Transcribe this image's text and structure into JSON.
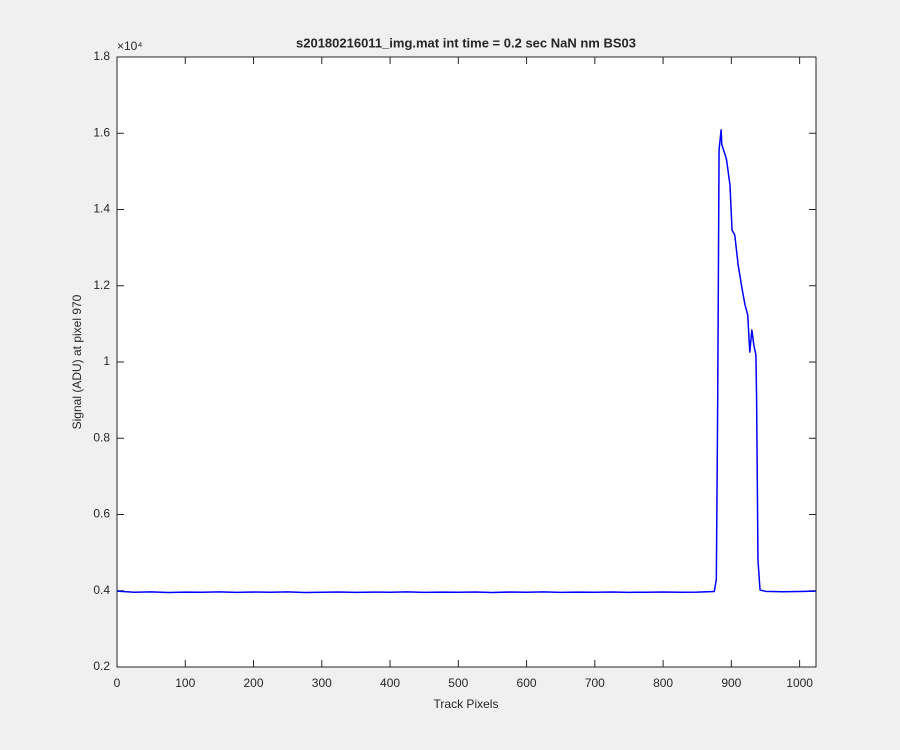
{
  "chart_data": {
    "type": "line",
    "title": "s20180216011_img.mat int time = 0.2 sec  NaN nm BS03",
    "x_label": "Track Pixels",
    "y_label": "Signal (ADU) at pixel 970",
    "y_multiplier": "×10⁴",
    "color": "#0000ff",
    "xlim": [
      0,
      1024
    ],
    "ylim": [
      2000,
      18000
    ],
    "xticks": [
      0,
      100,
      200,
      300,
      400,
      500,
      600,
      700,
      800,
      900,
      1000
    ],
    "yticks": [
      {
        "value": 2000,
        "label": "0.2"
      },
      {
        "value": 4000,
        "label": "0.4"
      },
      {
        "value": 6000,
        "label": "0.6"
      },
      {
        "value": 8000,
        "label": "0.8"
      },
      {
        "value": 10000,
        "label": "1"
      },
      {
        "value": 12000,
        "label": "1.2"
      },
      {
        "value": 14000,
        "label": "1.4"
      },
      {
        "value": 16000,
        "label": "1.6"
      },
      {
        "value": 18000,
        "label": "1.8"
      }
    ],
    "grid": false,
    "x": [
      0,
      25,
      50,
      75,
      100,
      125,
      150,
      175,
      200,
      225,
      250,
      275,
      300,
      325,
      350,
      375,
      400,
      425,
      450,
      475,
      500,
      525,
      550,
      575,
      600,
      625,
      650,
      675,
      700,
      725,
      750,
      775,
      800,
      825,
      850,
      875,
      878,
      880,
      882,
      885,
      886,
      891,
      893,
      898,
      901,
      905,
      910,
      916,
      920,
      924,
      927,
      930,
      933,
      936,
      937,
      939,
      942,
      950,
      975,
      1000,
      1024
    ],
    "values": [
      3990,
      3960,
      3970,
      3955,
      3965,
      3960,
      3972,
      3958,
      3966,
      3960,
      3970,
      3955,
      3962,
      3968,
      3958,
      3965,
      3960,
      3970,
      3956,
      3964,
      3960,
      3968,
      3955,
      3966,
      3960,
      3970,
      3958,
      3964,
      3960,
      3966,
      3958,
      3962,
      3968,
      3960,
      3964,
      3980,
      4300,
      9000,
      15560,
      16090,
      15700,
      15430,
      15300,
      14640,
      13460,
      13330,
      12540,
      11890,
      11500,
      11230,
      10260,
      10840,
      10440,
      10180,
      9000,
      4800,
      4020,
      3985,
      3975,
      3980,
      3990
    ]
  }
}
